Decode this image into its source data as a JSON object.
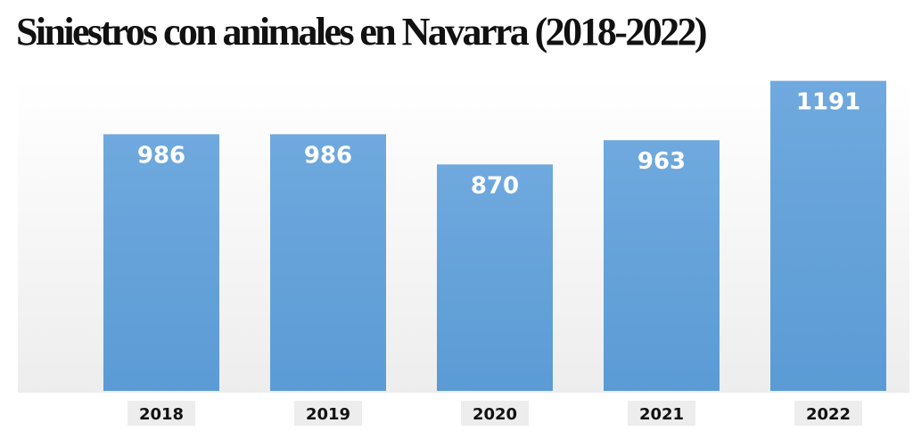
{
  "title": "Siniestros con animales en Navarra (2018-2022)",
  "colors": {
    "bar_top": "#6fa9de",
    "bar_bottom": "#5b9bd5",
    "value_text": "#ffffff",
    "tick_background": "#ededed"
  },
  "chart_data": {
    "type": "bar",
    "title": "Siniestros con animales en Navarra (2018-2022)",
    "categories": [
      "2018",
      "2019",
      "2020",
      "2021",
      "2022"
    ],
    "values": [
      986,
      986,
      870,
      963,
      1191
    ],
    "data_labels": [
      "986",
      "986",
      "870",
      "963",
      "1191"
    ],
    "xlabel": "",
    "ylabel": "",
    "ylim": [
      0,
      1200
    ],
    "grid": false,
    "legend": "none",
    "value_axis_visible": false
  }
}
